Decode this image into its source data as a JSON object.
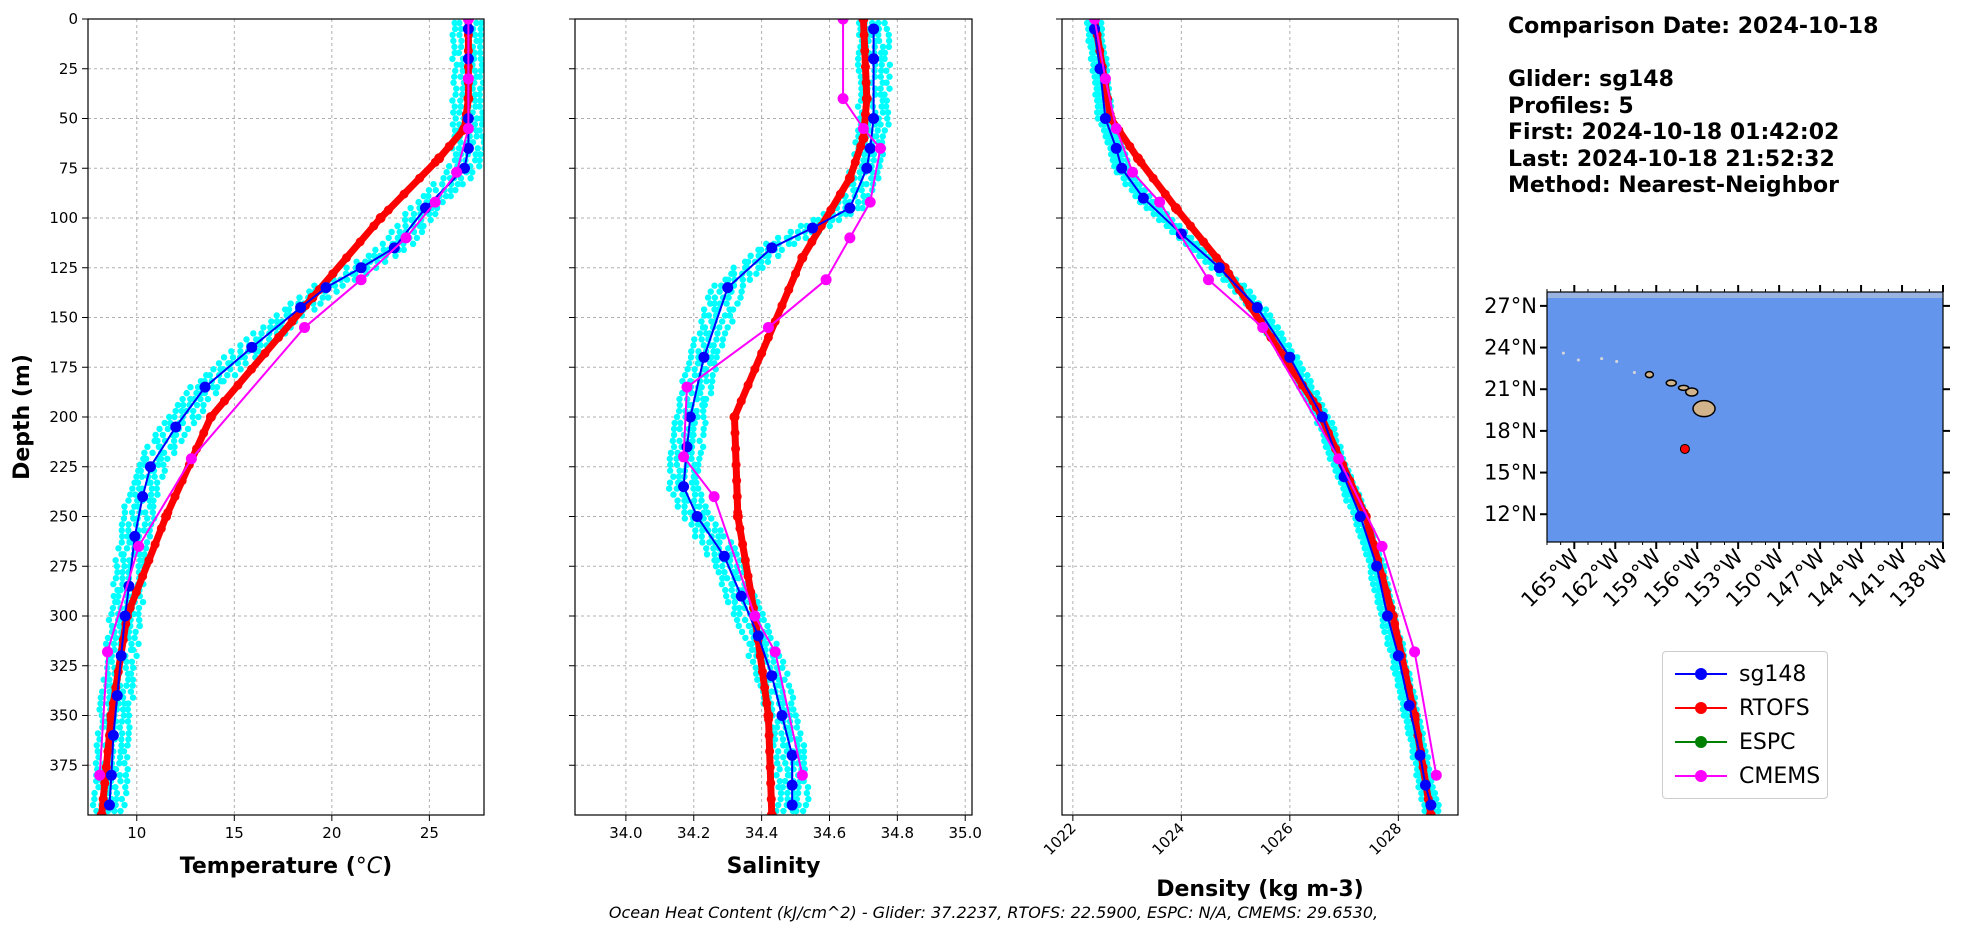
{
  "info": {
    "comparison_date": "Comparison Date: 2024-10-18",
    "glider": "Glider: sg148",
    "profiles": "Profiles: 5",
    "first": "First: 2024-10-18 01:42:02",
    "last": "Last: 2024-10-18 21:52:32",
    "method": "Method: Nearest-Neighbor"
  },
  "footer": {
    "ohc": "Ocean Heat Content (kJ/cm^2) - Glider: 37.2237,  RTOFS: 22.5900,  ESPC: N/A,  CMEMS: 29.6530,"
  },
  "legend": [
    {
      "name": "sg148",
      "color": "#0000ff"
    },
    {
      "name": "RTOFS",
      "color": "#ff0000"
    },
    {
      "name": "ESPC",
      "color": "#008000"
    },
    {
      "name": "CMEMS",
      "color": "#ff00ff"
    }
  ],
  "colors": {
    "glider_raw": "#00ffff",
    "ocean": "#6495ed",
    "land": "#d2b48c",
    "position_marker": "#ff0000"
  },
  "chart_data": [
    {
      "type": "line",
      "xlabel": "Temperature ($^oC$)",
      "ylabel": "Depth (m)",
      "xlim": [
        7.5,
        27.8
      ],
      "ylim": [
        400,
        0
      ],
      "xticks": [
        10,
        15,
        20,
        25
      ],
      "yticks": [
        0,
        25,
        50,
        75,
        100,
        125,
        150,
        175,
        200,
        225,
        250,
        275,
        300,
        325,
        350,
        375
      ],
      "grid": true,
      "series": [
        {
          "name": "sg148",
          "x": [
            27.0,
            27.0,
            27.0,
            27.0,
            26.8,
            24.8,
            23.2,
            21.5,
            19.7,
            18.4,
            15.9,
            13.5,
            12.0,
            10.7,
            10.3,
            9.9,
            9.6,
            9.4,
            9.2,
            9.0,
            8.8,
            8.7,
            8.6
          ],
          "y": [
            5,
            20,
            50,
            65,
            75,
            95,
            115,
            125,
            135,
            145,
            165,
            185,
            205,
            225,
            240,
            260,
            285,
            300,
            320,
            340,
            360,
            380,
            395
          ]
        },
        {
          "name": "RTOFS",
          "x": [
            27.0,
            27.0,
            26.8,
            25.5,
            22.5,
            19.0,
            13.8,
            11.5,
            9.5,
            8.7,
            8.2
          ],
          "y": [
            0,
            40,
            55,
            70,
            100,
            140,
            200,
            250,
            300,
            350,
            400
          ]
        },
        {
          "name": "ESPC",
          "x": [],
          "y": []
        },
        {
          "name": "CMEMS",
          "x": [
            27.0,
            27.0,
            27.0,
            26.4,
            25.3,
            23.8,
            21.5,
            18.6,
            12.8,
            10.1,
            8.5,
            8.1
          ],
          "y": [
            0,
            30,
            55,
            77,
            92,
            110,
            131,
            155,
            221,
            265,
            318,
            380
          ]
        }
      ]
    },
    {
      "type": "line",
      "xlabel": "Salinity",
      "xlim": [
        33.85,
        35.02
      ],
      "ylim": [
        400,
        0
      ],
      "xticks": [
        34.0,
        34.2,
        34.4,
        34.6,
        34.8,
        35.0
      ],
      "grid": true,
      "series": [
        {
          "name": "sg148",
          "x": [
            34.73,
            34.73,
            34.73,
            34.72,
            34.71,
            34.66,
            34.55,
            34.43,
            34.3,
            34.23,
            34.19,
            34.18,
            34.17,
            34.21,
            34.29,
            34.34,
            34.39,
            34.43,
            34.46,
            34.49,
            34.49,
            34.49
          ],
          "y": [
            5,
            20,
            50,
            65,
            75,
            95,
            105,
            115,
            135,
            170,
            200,
            215,
            235,
            250,
            270,
            290,
            310,
            330,
            350,
            370,
            385,
            395
          ]
        },
        {
          "name": "RTOFS",
          "x": [
            34.7,
            34.71,
            34.7,
            34.66,
            34.52,
            34.32,
            34.33,
            34.38,
            34.42,
            34.43
          ],
          "y": [
            0,
            40,
            60,
            80,
            120,
            200,
            250,
            300,
            350,
            400
          ]
        },
        {
          "name": "ESPC",
          "x": [],
          "y": []
        },
        {
          "name": "CMEMS",
          "x": [
            34.64,
            34.64,
            34.7,
            34.75,
            34.72,
            34.66,
            34.59,
            34.42,
            34.18,
            34.17,
            34.26,
            34.38,
            34.44,
            34.52
          ],
          "y": [
            0,
            40,
            55,
            65,
            92,
            110,
            131,
            155,
            185,
            220,
            240,
            300,
            318,
            380
          ]
        }
      ]
    },
    {
      "type": "line",
      "xlabel": "Density (kg m-3)",
      "xlim": [
        1021.8,
        1029.1
      ],
      "ylim": [
        400,
        0
      ],
      "xticks": [
        1022,
        1024,
        1026,
        1028
      ],
      "grid": true,
      "series": [
        {
          "name": "sg148",
          "x": [
            1022.4,
            1022.5,
            1022.6,
            1022.8,
            1022.9,
            1023.3,
            1024.0,
            1024.7,
            1025.4,
            1026.0,
            1026.6,
            1027.0,
            1027.3,
            1027.6,
            1027.8,
            1028.0,
            1028.2,
            1028.4,
            1028.5,
            1028.6
          ],
          "y": [
            5,
            25,
            50,
            65,
            75,
            90,
            108,
            125,
            145,
            170,
            200,
            230,
            250,
            275,
            300,
            320,
            345,
            370,
            385,
            395
          ]
        },
        {
          "name": "RTOFS",
          "x": [
            1022.4,
            1022.7,
            1023.2,
            1023.9,
            1024.8,
            1026.5,
            1027.4,
            1027.9,
            1028.3,
            1028.6
          ],
          "y": [
            0,
            50,
            70,
            95,
            125,
            195,
            250,
            300,
            350,
            400
          ]
        },
        {
          "name": "ESPC",
          "x": [],
          "y": []
        },
        {
          "name": "CMEMS",
          "x": [
            1022.4,
            1022.6,
            1022.8,
            1023.1,
            1023.6,
            1024.5,
            1025.5,
            1026.9,
            1027.7,
            1028.3,
            1028.7
          ],
          "y": [
            0,
            30,
            55,
            77,
            92,
            131,
            155,
            221,
            265,
            318,
            380
          ]
        }
      ]
    },
    {
      "type": "map",
      "xticks": [
        "165°W",
        "162°W",
        "159°W",
        "156°W",
        "153°W",
        "150°W",
        "147°W",
        "144°W",
        "141°W",
        "138°W"
      ],
      "yticks": [
        "27°N",
        "24°N",
        "21°N",
        "18°N",
        "15°N",
        "12°N"
      ],
      "xlim": [
        -167.0,
        -138.0
      ],
      "ylim": [
        10.0,
        28.0
      ],
      "marker": {
        "lon": -156.9,
        "lat": 16.7
      }
    }
  ]
}
